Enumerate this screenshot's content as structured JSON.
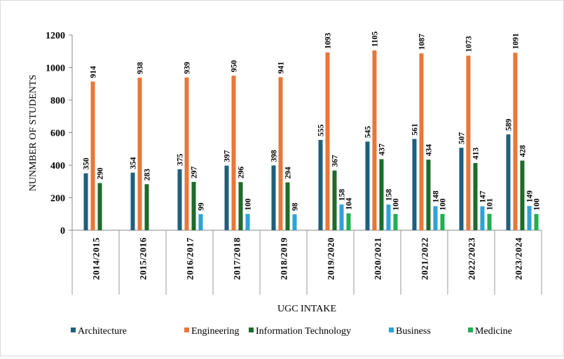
{
  "chart_data": {
    "type": "bar",
    "title": "",
    "xlabel": "UGC INTAKE",
    "ylabel": "NUNMBER  OF  STUDENTS",
    "ylim": [
      0,
      1200
    ],
    "yticks": [
      0,
      200,
      400,
      600,
      800,
      1000,
      1200
    ],
    "grid": false,
    "legend_position": "bottom",
    "categories": [
      "2014/2015",
      "2015/2016",
      "2016/2017",
      "2017/2018",
      "2018/2019",
      "2019/2020",
      "2020/2021",
      "2021/2022",
      "2022/2023",
      "2023/2024"
    ],
    "series": [
      {
        "name": "Architecture",
        "color": "#1f5f7f",
        "values": [
          350,
          354,
          375,
          397,
          398,
          555,
          545,
          561,
          507,
          589
        ]
      },
      {
        "name": "Engineering",
        "color": "#e8773a",
        "values": [
          914,
          938,
          939,
          950,
          941,
          1093,
          1105,
          1087,
          1073,
          1091
        ]
      },
      {
        "name": "Information Technology",
        "color": "#1e6b2b",
        "values": [
          290,
          283,
          297,
          296,
          294,
          367,
          437,
          434,
          413,
          428
        ]
      },
      {
        "name": "Business",
        "color": "#2ea2d6",
        "values": [
          null,
          null,
          99,
          100,
          98,
          158,
          158,
          148,
          147,
          149
        ]
      },
      {
        "name": "Medicine",
        "color": "#1fb04f",
        "values": [
          null,
          null,
          null,
          null,
          null,
          104,
          100,
          100,
          101,
          100
        ]
      }
    ]
  }
}
